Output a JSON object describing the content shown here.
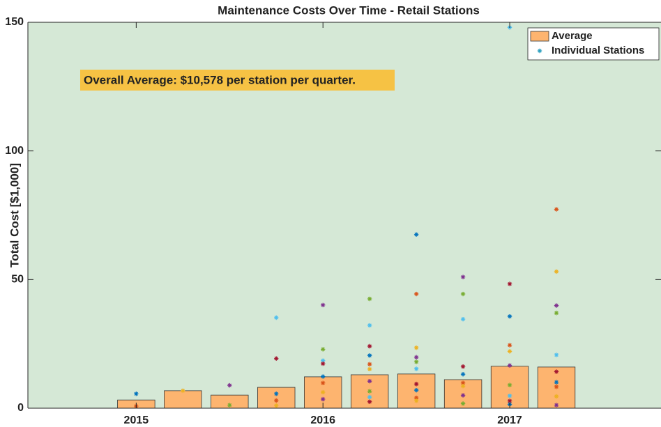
{
  "chart_data": {
    "type": "bar",
    "title": "Maintenance Costs Over Time - Retail Stations",
    "y_label": "Total Cost [$1,000]",
    "annotation": "Overall Average: $10,578 per station per quarter.",
    "x": [
      2015,
      2015.25,
      2015.5,
      2015.75,
      2016,
      2016.25,
      2016.5,
      2016.75,
      2017,
      2017.25
    ],
    "xlim": [
      2014.42,
      2017.81
    ],
    "xticks": [
      2015,
      2016,
      2017
    ],
    "ylim": [
      0,
      150
    ],
    "yticks": [
      0,
      50,
      100,
      150
    ],
    "legend": "northeast",
    "background": "#d5e8d6",
    "series": [
      {
        "name": "Average",
        "type": "bar",
        "color": "#fdb46f",
        "values": [
          3.2,
          6.8,
          5.1,
          8.1,
          12.2,
          13.0,
          13.3,
          11.1,
          16.3,
          16.0
        ]
      },
      {
        "name": "Individual Stations",
        "type": "scatter",
        "color": "#2a9fbf",
        "palette": [
          "#0072BD",
          "#D95319",
          "#EDB120",
          "#7E2F8E",
          "#77AC30",
          "#4DBEEE",
          "#A2142F"
        ],
        "x": [
          2015,
          2015,
          2015.25,
          2015.5,
          2015.5,
          2015.75,
          2015.75,
          2015.75,
          2015.75,
          2015.75,
          2016,
          2016,
          2016,
          2016,
          2016,
          2016,
          2016,
          2016,
          2016.25,
          2016.25,
          2016.25,
          2016.25,
          2016.25,
          2016.25,
          2016.25,
          2016.25,
          2016.25,
          2016.25,
          2016.5,
          2016.5,
          2016.5,
          2016.5,
          2016.5,
          2016.5,
          2016.5,
          2016.5,
          2016.5,
          2016.5,
          2016.75,
          2016.75,
          2016.75,
          2016.75,
          2016.75,
          2016.75,
          2016.75,
          2016.75,
          2016.75,
          2017,
          2017,
          2017,
          2017,
          2017,
          2017,
          2017,
          2017,
          2017,
          2017,
          2017.25,
          2017.25,
          2017.25,
          2017.25,
          2017.25,
          2017.25,
          2017.25,
          2017.25,
          2017.25,
          2017.25
        ],
        "values": [
          5.6,
          0.8,
          6.8,
          8.9,
          1.2,
          35.2,
          19.3,
          5.6,
          3.0,
          1.0,
          40.1,
          22.9,
          18.5,
          17.3,
          12.3,
          9.8,
          6.2,
          3.5,
          42.5,
          32.2,
          24.1,
          20.5,
          17.1,
          15.2,
          10.5,
          6.6,
          4.3,
          2.5,
          67.5,
          44.4,
          23.5,
          19.8,
          18.0,
          15.3,
          9.4,
          7.0,
          4.0,
          2.9,
          51.0,
          44.4,
          34.6,
          16.2,
          13.2,
          9.8,
          8.6,
          5.0,
          1.8,
          148,
          48.3,
          35.7,
          24.5,
          22.1,
          16.6,
          9.0,
          4.8,
          2.8,
          1.5,
          77.3,
          53.1,
          39.9,
          37.0,
          20.7,
          14.2,
          10.1,
          8.3,
          4.6,
          1.2
        ]
      }
    ]
  }
}
